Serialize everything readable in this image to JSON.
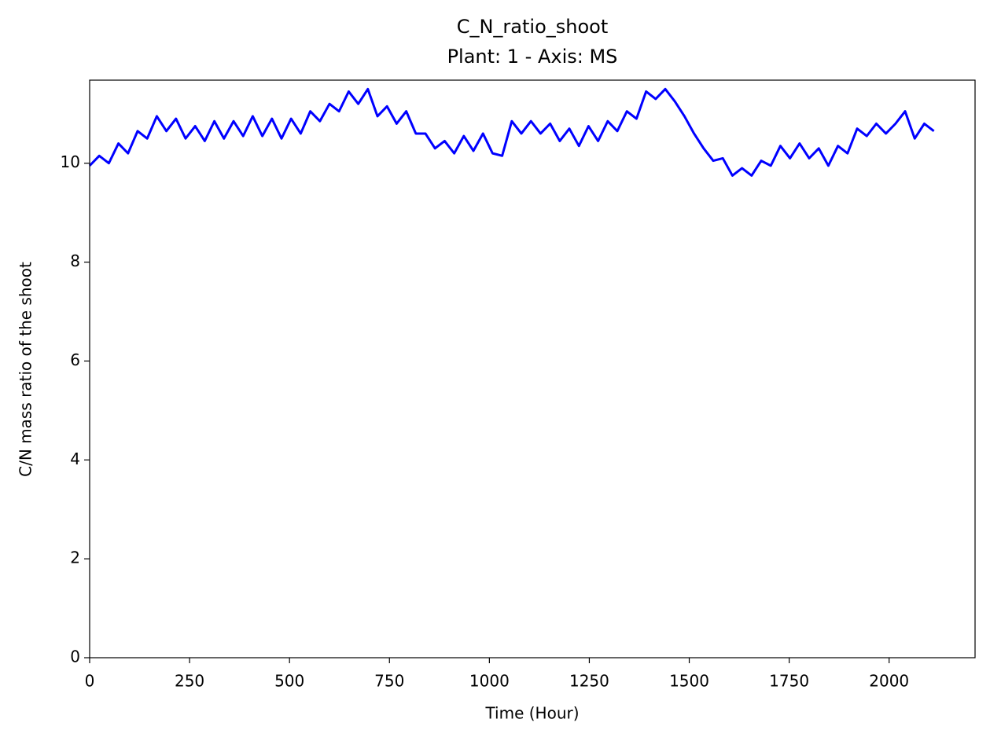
{
  "chart_data": {
    "type": "line",
    "title": "C_N_ratio_shoot",
    "subtitle": "Plant: 1 - Axis: MS",
    "x_label": "Time (Hour)",
    "y_label": "C/N mass ratio of the shoot",
    "xlim": [
      0,
      2215
    ],
    "ylim": [
      0,
      11.68
    ],
    "xticks": [
      0,
      250,
      500,
      750,
      1000,
      1250,
      1500,
      1750,
      2000
    ],
    "yticks": [
      0,
      2,
      4,
      6,
      8,
      10
    ],
    "x": [
      0,
      24,
      48,
      72,
      96,
      120,
      144,
      168,
      192,
      216,
      240,
      264,
      288,
      312,
      336,
      360,
      384,
      408,
      432,
      456,
      480,
      504,
      528,
      552,
      576,
      600,
      624,
      648,
      672,
      696,
      720,
      744,
      768,
      792,
      816,
      840,
      864,
      888,
      912,
      936,
      960,
      984,
      1008,
      1032,
      1056,
      1080,
      1104,
      1128,
      1152,
      1176,
      1200,
      1224,
      1248,
      1272,
      1296,
      1320,
      1344,
      1368,
      1392,
      1416,
      1440,
      1464,
      1488,
      1512,
      1536,
      1560,
      1584,
      1608,
      1632,
      1656,
      1680,
      1704,
      1728,
      1752,
      1776,
      1800,
      1824,
      1848,
      1872,
      1896,
      1920,
      1944,
      1968,
      1992,
      2016,
      2040,
      2064,
      2088,
      2112
    ],
    "series": [
      {
        "color": "#0000ff",
        "values": [
          9.95,
          10.15,
          10.0,
          10.4,
          10.2,
          10.65,
          10.5,
          10.95,
          10.65,
          10.9,
          10.5,
          10.75,
          10.45,
          10.85,
          10.5,
          10.85,
          10.55,
          10.95,
          10.55,
          10.9,
          10.5,
          10.9,
          10.6,
          11.05,
          10.85,
          11.2,
          11.05,
          11.45,
          11.2,
          11.5,
          10.95,
          11.15,
          10.8,
          11.05,
          10.6,
          10.6,
          10.3,
          10.45,
          10.2,
          10.55,
          10.25,
          10.6,
          10.2,
          10.15,
          10.85,
          10.6,
          10.85,
          10.6,
          10.8,
          10.45,
          10.7,
          10.35,
          10.75,
          10.45,
          10.85,
          10.65,
          11.05,
          10.9,
          11.45,
          11.3,
          11.5,
          11.25,
          10.95,
          10.6,
          10.3,
          10.05,
          10.1,
          9.75,
          9.9,
          9.75,
          10.05,
          9.95,
          10.35,
          10.1,
          10.4,
          10.1,
          10.3,
          9.95,
          10.35,
          10.2,
          10.7,
          10.55,
          10.8,
          10.6,
          10.8,
          11.05,
          10.5,
          10.8,
          10.65
        ]
      }
    ]
  }
}
